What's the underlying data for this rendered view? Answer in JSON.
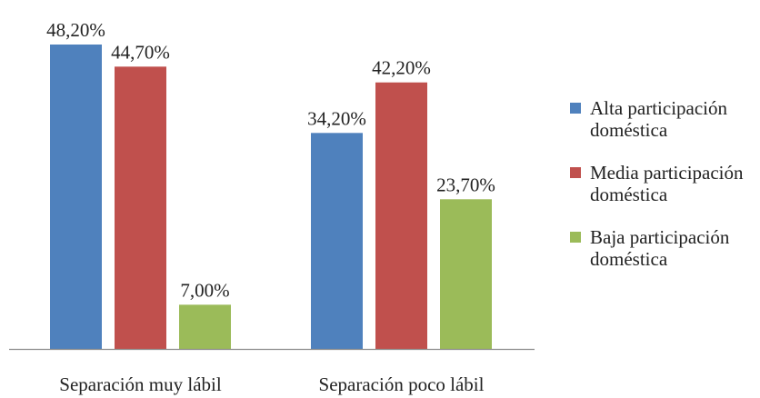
{
  "chart_data": {
    "type": "bar",
    "title": "",
    "xlabel": "",
    "ylabel": "",
    "ylim": [
      0,
      50
    ],
    "grid": false,
    "legend_position": "right",
    "categories": [
      "Separación muy lábil",
      "Separación poco lábil"
    ],
    "series": [
      {
        "name": "Alta participación doméstica",
        "name_lines": [
          "Alta participación",
          "doméstica"
        ],
        "color": "#4F81BD",
        "values": [
          48.2,
          34.2
        ],
        "labels": [
          "48,20%",
          "34,20%"
        ]
      },
      {
        "name": "Media participación doméstica",
        "name_lines": [
          "Media participación",
          "doméstica"
        ],
        "color": "#C0504D",
        "values": [
          44.7,
          42.2
        ],
        "labels": [
          "44,70%",
          "42,20%"
        ]
      },
      {
        "name": "Baja participación doméstica",
        "name_lines": [
          "Baja participación",
          "doméstica"
        ],
        "color": "#9BBB59",
        "values": [
          7.0,
          23.7
        ],
        "labels": [
          "7,00%",
          "23,70%"
        ]
      }
    ]
  }
}
